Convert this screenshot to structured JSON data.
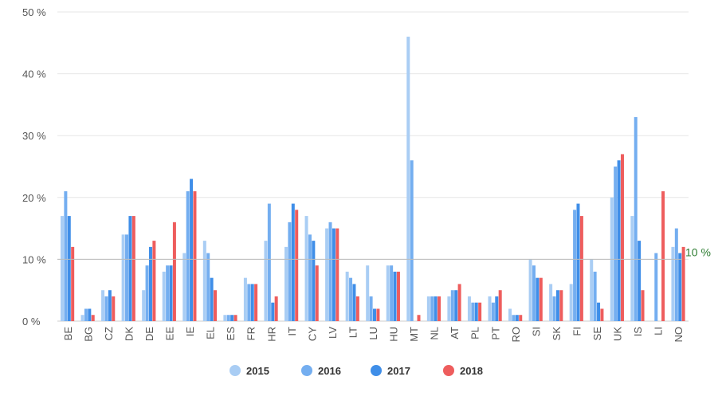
{
  "chart_data": {
    "type": "bar",
    "categories": [
      "BE",
      "BG",
      "CZ",
      "DK",
      "DE",
      "EE",
      "IE",
      "EL",
      "ES",
      "FR",
      "HR",
      "IT",
      "CY",
      "LV",
      "LT",
      "LU",
      "HU",
      "MT",
      "NL",
      "AT",
      "PL",
      "PT",
      "RO",
      "SI",
      "SK",
      "FI",
      "SE",
      "UK",
      "IS",
      "LI",
      "NO"
    ],
    "series": [
      {
        "name": "2015",
        "color": "#a9cdf4",
        "values": [
          17,
          1,
          5,
          14,
          5,
          8,
          11,
          13,
          1,
          7,
          13,
          12,
          17,
          15,
          8,
          9,
          9,
          46,
          4,
          4,
          4,
          4,
          2,
          10,
          6,
          6,
          10,
          20,
          17,
          null,
          12
        ]
      },
      {
        "name": "2016",
        "color": "#74aef0",
        "values": [
          21,
          2,
          4,
          14,
          9,
          9,
          21,
          11,
          1,
          6,
          19,
          16,
          14,
          16,
          7,
          4,
          9,
          26,
          4,
          5,
          3,
          3,
          1,
          9,
          4,
          18,
          8,
          25,
          33,
          11,
          15
        ]
      },
      {
        "name": "2017",
        "color": "#3f8ee8",
        "values": [
          17,
          2,
          5,
          17,
          12,
          9,
          23,
          7,
          1,
          6,
          3,
          19,
          13,
          15,
          6,
          2,
          8,
          null,
          4,
          5,
          3,
          4,
          1,
          7,
          5,
          19,
          3,
          26,
          13,
          null,
          11
        ]
      },
      {
        "name": "2018",
        "color": "#ee5d5d",
        "values": [
          12,
          1,
          4,
          17,
          13,
          16,
          21,
          5,
          1,
          6,
          4,
          18,
          9,
          15,
          4,
          2,
          8,
          1,
          4,
          6,
          3,
          5,
          1,
          7,
          5,
          17,
          2,
          27,
          5,
          21,
          12
        ]
      }
    ],
    "ylim": [
      0,
      50
    ],
    "yticks": [
      {
        "value": 0,
        "label": "0 %"
      },
      {
        "value": 10,
        "label": "10 %"
      },
      {
        "value": 20,
        "label": "20 %"
      },
      {
        "value": 30,
        "label": "30 %"
      },
      {
        "value": 40,
        "label": "40 %"
      },
      {
        "value": 50,
        "label": "50 %"
      }
    ],
    "reference_line": {
      "value": 10,
      "label": "10 %",
      "color": "#2e7d32"
    },
    "grid": true,
    "legend_position": "bottom-center"
  }
}
